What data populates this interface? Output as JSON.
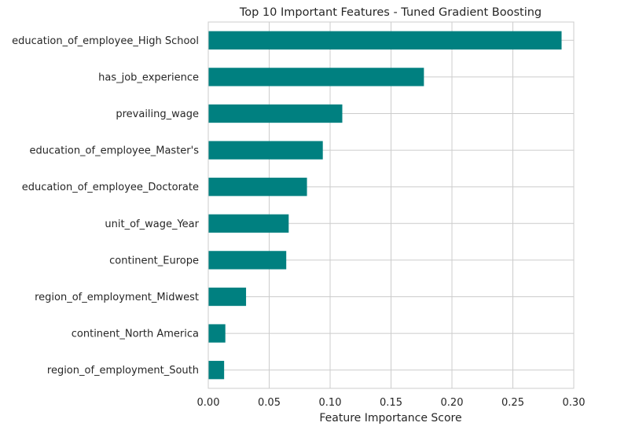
{
  "chart_data": {
    "type": "bar",
    "orientation": "horizontal",
    "title": "Top 10 Important Features - Tuned Gradient Boosting",
    "xlabel": "Feature Importance Score",
    "ylabel": "",
    "categories": [
      "education_of_employee_High School",
      "has_job_experience",
      "prevailing_wage",
      "education_of_employee_Master's",
      "education_of_employee_Doctorate",
      "unit_of_wage_Year",
      "continent_Europe",
      "region_of_employment_Midwest",
      "continent_North America",
      "region_of_employment_South"
    ],
    "values": [
      0.29,
      0.177,
      0.11,
      0.094,
      0.081,
      0.066,
      0.064,
      0.031,
      0.014,
      0.013
    ],
    "xlim": [
      0.0,
      0.3
    ],
    "xticks": [
      "0.00",
      "0.05",
      "0.10",
      "0.15",
      "0.20",
      "0.25",
      "0.30"
    ],
    "xtick_values": [
      0.0,
      0.05,
      0.1,
      0.15,
      0.2,
      0.25,
      0.3
    ],
    "grid": true,
    "legend": "none",
    "bar_color": "#008080",
    "grid_color": "#cccccc",
    "frame_color": "#cccccc"
  }
}
